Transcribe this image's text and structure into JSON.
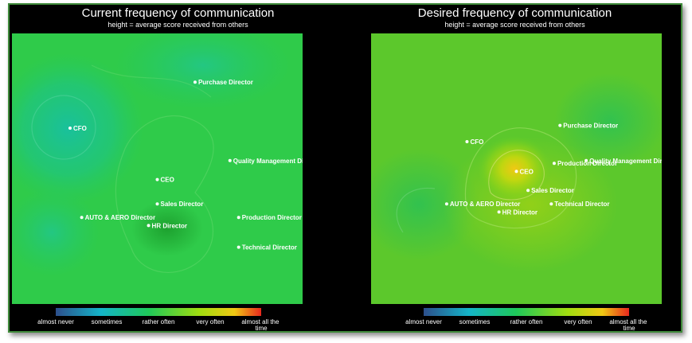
{
  "chart_data": [
    {
      "type": "heatmap",
      "title": "Current frequency of communication",
      "subtitle": "height = average score received from others",
      "points": [
        {
          "name": "Purchase Director",
          "x": 0.63,
          "y": 0.82
        },
        {
          "name": "CFO",
          "x": 0.2,
          "y": 0.65
        },
        {
          "name": "Quality Management Director",
          "x": 0.75,
          "y": 0.53
        },
        {
          "name": "CEO",
          "x": 0.5,
          "y": 0.46
        },
        {
          "name": "Sales Director",
          "x": 0.5,
          "y": 0.37
        },
        {
          "name": "AUTO & AERO Director",
          "x": 0.24,
          "y": 0.32
        },
        {
          "name": "Production Director",
          "x": 0.78,
          "y": 0.32
        },
        {
          "name": "HR Director",
          "x": 0.47,
          "y": 0.29
        },
        {
          "name": "Technical Director",
          "x": 0.78,
          "y": 0.21
        }
      ],
      "legend_labels": [
        "almost never",
        "sometimes",
        "rather often",
        "very often",
        "almost all the time"
      ]
    },
    {
      "type": "heatmap",
      "title": "Desired frequency of communication",
      "subtitle": "height = average score received from others",
      "points": [
        {
          "name": "Purchase Director",
          "x": 0.65,
          "y": 0.66
        },
        {
          "name": "CFO",
          "x": 0.33,
          "y": 0.6
        },
        {
          "name": "Quality Management Director",
          "x": 0.74,
          "y": 0.53
        },
        {
          "name": "Production Director",
          "x": 0.63,
          "y": 0.52
        },
        {
          "name": "CEO",
          "x": 0.5,
          "y": 0.49
        },
        {
          "name": "Sales Director",
          "x": 0.54,
          "y": 0.42
        },
        {
          "name": "AUTO & AERO Director",
          "x": 0.26,
          "y": 0.37
        },
        {
          "name": "Technical Director",
          "x": 0.62,
          "y": 0.37
        },
        {
          "name": "HR Director",
          "x": 0.44,
          "y": 0.34
        }
      ],
      "legend_labels": [
        "almost never",
        "sometimes",
        "rather often",
        "very often",
        "almost all the time"
      ]
    }
  ],
  "colors": {
    "background": "#000000",
    "frame_border": "#3f8a3a",
    "scale": [
      "#2d4f8c",
      "#14b4c8",
      "#1ec85a",
      "#a0dc10",
      "#f0c814",
      "#e8281e"
    ],
    "surface_base": "#30d040"
  }
}
